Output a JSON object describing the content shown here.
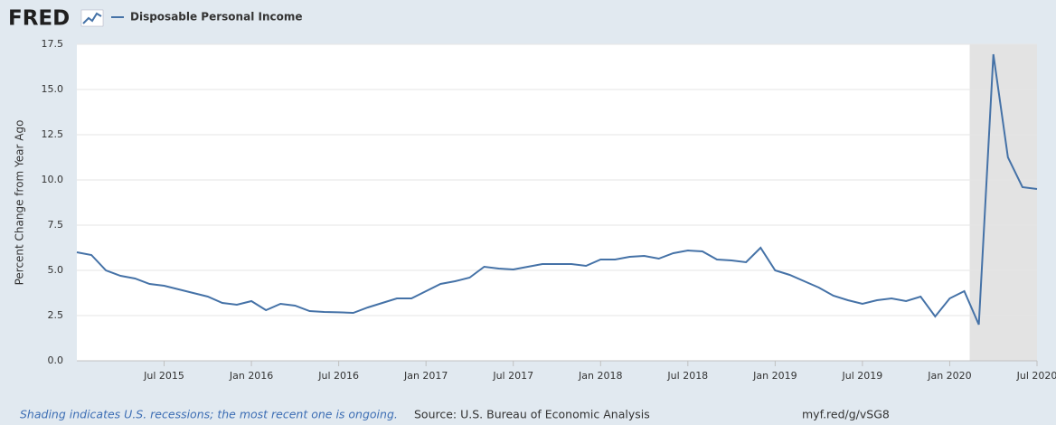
{
  "chart_data": {
    "type": "line",
    "logo": "FRED",
    "y_label": "Percent Change from Year Ago",
    "note": "Shading indicates U.S. recessions; the most recent one is ongoing.",
    "source": "Source: U.S. Bureau of Economic Analysis",
    "link": "myf.red/g/vSG8",
    "x": [
      "2015-01",
      "2015-02",
      "2015-03",
      "2015-04",
      "2015-05",
      "2015-06",
      "2015-07",
      "2015-08",
      "2015-09",
      "2015-10",
      "2015-11",
      "2015-12",
      "2016-01",
      "2016-02",
      "2016-03",
      "2016-04",
      "2016-05",
      "2016-06",
      "2016-07",
      "2016-08",
      "2016-09",
      "2016-10",
      "2016-11",
      "2016-12",
      "2017-01",
      "2017-02",
      "2017-03",
      "2017-04",
      "2017-05",
      "2017-06",
      "2017-07",
      "2017-08",
      "2017-09",
      "2017-10",
      "2017-11",
      "2017-12",
      "2018-01",
      "2018-02",
      "2018-03",
      "2018-04",
      "2018-05",
      "2018-06",
      "2018-07",
      "2018-08",
      "2018-09",
      "2018-10",
      "2018-11",
      "2018-12",
      "2019-01",
      "2019-02",
      "2019-03",
      "2019-04",
      "2019-05",
      "2019-06",
      "2019-07",
      "2019-08",
      "2019-09",
      "2019-10",
      "2019-11",
      "2019-12",
      "2020-01",
      "2020-02",
      "2020-03",
      "2020-04",
      "2020-05",
      "2020-06",
      "2020-07"
    ],
    "series": [
      {
        "name": "Disposable Personal Income",
        "color": "#4572a7",
        "values": [
          6.0,
          5.85,
          5.0,
          4.7,
          4.55,
          4.25,
          4.15,
          3.95,
          3.75,
          3.55,
          3.2,
          3.1,
          3.3,
          2.8,
          3.15,
          3.05,
          2.75,
          2.7,
          2.68,
          2.65,
          2.95,
          3.2,
          3.45,
          3.45,
          3.85,
          4.25,
          4.4,
          4.6,
          5.2,
          5.1,
          5.05,
          5.2,
          5.35,
          5.35,
          5.35,
          5.25,
          5.6,
          5.6,
          5.75,
          5.8,
          5.65,
          5.95,
          6.1,
          6.05,
          5.6,
          5.55,
          5.45,
          6.25,
          5.0,
          4.75,
          4.4,
          4.05,
          3.6,
          3.35,
          3.15,
          3.35,
          3.45,
          3.3,
          3.55,
          2.45,
          3.45,
          3.85,
          2.0,
          16.95,
          11.25,
          9.6,
          9.5
        ]
      }
    ],
    "xlim": [
      "2015-01",
      "2020-07"
    ],
    "xticks": [
      {
        "value": "2015-07",
        "label": "Jul 2015"
      },
      {
        "value": "2016-01",
        "label": "Jan 2016"
      },
      {
        "value": "2016-07",
        "label": "Jul 2016"
      },
      {
        "value": "2017-01",
        "label": "Jan 2017"
      },
      {
        "value": "2017-07",
        "label": "Jul 2017"
      },
      {
        "value": "2018-01",
        "label": "Jan 2018"
      },
      {
        "value": "2018-07",
        "label": "Jul 2018"
      },
      {
        "value": "2019-01",
        "label": "Jan 2019"
      },
      {
        "value": "2019-07",
        "label": "Jul 2019"
      },
      {
        "value": "2020-01",
        "label": "Jan 2020"
      },
      {
        "value": "2020-07",
        "label": "Jul 2020"
      }
    ],
    "ylim": [
      0,
      17.5
    ],
    "yticks": [
      {
        "value": 0,
        "label": "0.0"
      },
      2.5,
      {
        "value": 5,
        "label": "5.0"
      },
      7.5,
      {
        "value": 10,
        "label": "10.0"
      },
      12.5,
      {
        "value": 15,
        "label": "15.0"
      },
      17.5
    ],
    "grid": true,
    "shading": [
      {
        "start": "2020-02",
        "end": "2020-07"
      }
    ]
  }
}
